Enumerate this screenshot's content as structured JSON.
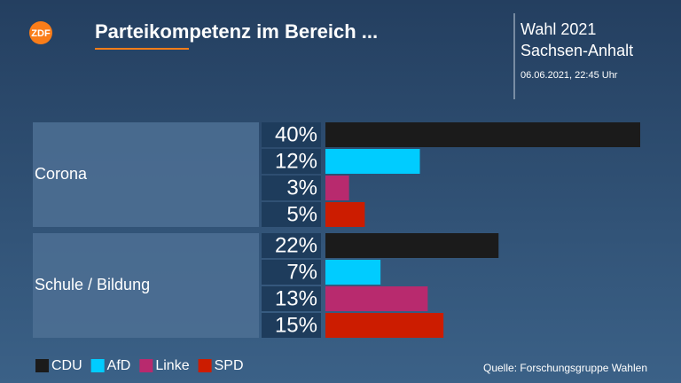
{
  "chart_data": {
    "type": "bar",
    "logo": "ZDF",
    "title": "Parteikompetenz im Bereich ...",
    "header": [
      "Wahl 2021",
      "Sachsen-Anhalt"
    ],
    "timestamp": "06.06.2021, 22:45 Uhr",
    "source": "Quelle: Forschungsgruppe Wahlen",
    "categories": [
      "Corona",
      "Schule / Bildung"
    ],
    "series": [
      {
        "name": "CDU",
        "color": "#1b1b1b",
        "values": [
          40,
          22
        ],
        "value_labels": [
          "40%",
          "22%"
        ]
      },
      {
        "name": "AfD",
        "color": "#00ccff",
        "values": [
          12,
          7
        ],
        "value_labels": [
          "12%",
          "7%"
        ]
      },
      {
        "name": "Linke",
        "color": "#b82a6e",
        "values": [
          3,
          13
        ],
        "value_labels": [
          "3%",
          "13%"
        ]
      },
      {
        "name": "SPD",
        "color": "#cc1c00",
        "values": [
          5,
          15
        ],
        "value_labels": [
          "5%",
          "15%"
        ]
      }
    ]
  }
}
